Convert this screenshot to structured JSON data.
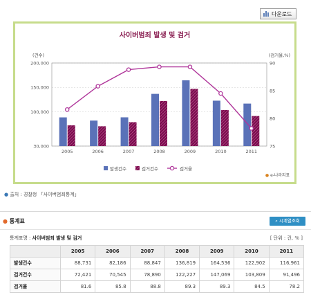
{
  "download_label": "다운로드",
  "chart_data": {
    "type": "bar",
    "title": "사이버범죄 발생 및 검거",
    "ylabel": "(건수)",
    "y2label": "(검거율,%)",
    "categories": [
      "2005",
      "2006",
      "2007",
      "2008",
      "2009",
      "2010",
      "2011"
    ],
    "ylim": [
      30000,
      200000
    ],
    "yticks": [
      "30,000",
      "100,000",
      "150,000",
      "200,000"
    ],
    "y2lim": [
      75,
      90
    ],
    "y2ticks": [
      "75",
      "80",
      "85",
      "90"
    ],
    "grid": true,
    "legend_position": "bottom",
    "series": [
      {
        "name": "발생건수",
        "kind": "bar",
        "color": "#5a72b8",
        "values": [
          88731,
          82186,
          88847,
          136819,
          164536,
          122902,
          116961
        ]
      },
      {
        "name": "검거건수",
        "kind": "bar",
        "color": "#7a0e4e",
        "values": [
          72421,
          70545,
          78890,
          122227,
          147069,
          103809,
          91496
        ]
      },
      {
        "name": "검거율",
        "kind": "line",
        "axis": "right",
        "color": "#b0379b",
        "values": [
          81.6,
          85.8,
          88.8,
          89.3,
          89.3,
          84.5,
          78.2
        ]
      }
    ]
  },
  "brand_label": "e-나라지표",
  "source_label": "출처 : 경찰청 「사이버범죄통계」",
  "section_title": "통계표",
  "trend_button_label": "시계열조회",
  "table_name_prefix": "통계표명 :",
  "table_name": "사이버범죄 발생 및 검거",
  "unit_label": "[ 단위 : 건, % ]",
  "table": {
    "columns": [
      "2005",
      "2006",
      "2007",
      "2008",
      "2009",
      "2010",
      "2011"
    ],
    "rows": [
      {
        "label": "발생건수",
        "values": [
          "88,731",
          "82,186",
          "88,847",
          "136,819",
          "164,536",
          "122,902",
          "116,961"
        ]
      },
      {
        "label": "검거건수",
        "values": [
          "72,421",
          "70,545",
          "78,890",
          "122,227",
          "147,069",
          "103,809",
          "91,496"
        ]
      },
      {
        "label": "검거율",
        "values": [
          "81.6",
          "85.8",
          "88.8",
          "89.3",
          "89.3",
          "84.5",
          "78.2"
        ]
      }
    ]
  }
}
